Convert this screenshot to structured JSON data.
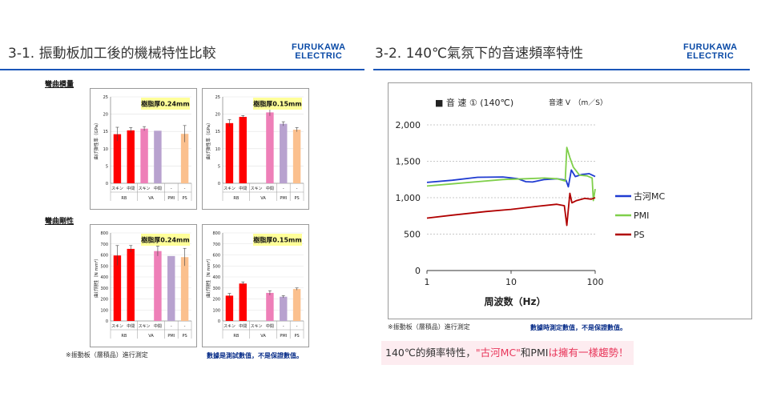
{
  "left_slide": {
    "title": "3-1. 振動板加工後的機械特性比較",
    "logo": {
      "line1": "FURUKAWA",
      "line2": "ELECTRIC"
    },
    "section_modulus": "彎曲模量",
    "section_rigidity": "彎曲剛性",
    "note": "※振動板（層積品）進行測定",
    "note_blue": "數據是測試數值，不是保證數值。"
  },
  "right_slide": {
    "title": "3-2. 140℃氣氛下的音速頻率特性",
    "logo": {
      "line1": "FURUKAWA",
      "line2": "ELECTRIC"
    },
    "note": "※振動板（層積品）進行測定",
    "note_blue": "數據時測定數值，不是保證數值。",
    "callout_plain1": "140℃的頻率特性，",
    "callout_hl1": "\"古河MC\"",
    "callout_plain2": "和PMI",
    "callout_plain3": "は",
    "callout_hl2": "擁有一樣趨勢！"
  },
  "colors": {
    "red": "#ff0000",
    "pink": "#ee7fb8",
    "lavender": "#b8a2cf",
    "peach": "#fbc08e",
    "blue_line": "#1f3bd1",
    "green_line": "#7fcf4a",
    "darkred_line": "#b00000",
    "title_rule": "#1a56b8",
    "label_bg": "#ffff99"
  },
  "chart_data": [
    {
      "type": "bar",
      "ylabel": "曲げ弾性率（GPa）",
      "label": "樹脂厚0.24mm",
      "ylim": [
        0,
        25
      ],
      "yticks": [
        "0",
        "5",
        "10",
        "15",
        "20",
        "25"
      ],
      "categories": [
        "スキン",
        "中間",
        "スキン",
        "中間",
        "-",
        "-"
      ],
      "groups": [
        "RB",
        "VA",
        "PMI",
        "PS"
      ],
      "values": [
        14.2,
        15.3,
        15.8,
        15.2,
        null,
        14.3
      ],
      "errors": [
        2.0,
        0.8,
        0.6,
        null,
        null,
        2.4
      ],
      "colors": [
        "red",
        "red",
        "pink",
        "lavender",
        "lavender",
        "peach"
      ]
    },
    {
      "type": "bar",
      "ylabel": "曲げ弾性率（GPa）",
      "label": "樹脂厚0.15mm",
      "ylim": [
        0,
        25
      ],
      "yticks": [
        "0",
        "5",
        "10",
        "15",
        "20",
        "25"
      ],
      "categories": [
        "スキン",
        "中間",
        "スキン",
        "中間",
        "-",
        "-"
      ],
      "groups": [
        "RB",
        "VA",
        "PMI",
        "PS"
      ],
      "values": [
        17.4,
        19.2,
        null,
        20.5,
        17.2,
        15.5
      ],
      "errors": [
        1.0,
        0.4,
        null,
        1.0,
        0.6,
        0.6
      ],
      "colors": [
        "red",
        "red",
        "pink",
        "pink",
        "lavender",
        "peach"
      ]
    },
    {
      "type": "bar",
      "ylabel": "曲げ剛性（N mm²）",
      "label": "樹脂厚0.24mm",
      "ylim": [
        0,
        800
      ],
      "yticks": [
        "0",
        "100",
        "200",
        "300",
        "400",
        "500",
        "600",
        "700",
        "800"
      ],
      "categories": [
        "スキン",
        "中間",
        "スキン",
        "中間",
        "-",
        "-"
      ],
      "groups": [
        "RB",
        "VA",
        "PMI",
        "PS"
      ],
      "values": [
        595,
        655,
        null,
        635,
        590,
        580
      ],
      "errors": [
        90,
        30,
        null,
        45,
        null,
        80
      ],
      "colors": [
        "red",
        "red",
        "pink",
        "pink",
        "lavender",
        "peach"
      ]
    },
    {
      "type": "bar",
      "ylabel": "曲げ剛性（N mm²）",
      "label": "樹脂厚0.15mm",
      "ylim": [
        0,
        800
      ],
      "yticks": [
        "0",
        "100",
        "200",
        "300",
        "400",
        "500",
        "600",
        "700",
        "800"
      ],
      "categories": [
        "スキン",
        "中間",
        "スキン",
        "中間",
        "-",
        "-"
      ],
      "groups": [
        "RB",
        "VA",
        "PMI",
        "PS"
      ],
      "values": [
        230,
        340,
        null,
        255,
        220,
        290
      ],
      "errors": [
        20,
        15,
        null,
        20,
        10,
        10
      ],
      "colors": [
        "red",
        "red",
        "pink",
        "pink",
        "lavender",
        "peach"
      ]
    },
    {
      "type": "line",
      "title": "■ 音 速 ① (140℃)",
      "subtitle": "音速 V　（m／S）",
      "xlabel": "周波数（Hz）",
      "xscale": "log",
      "xlim": [
        1,
        100
      ],
      "xticks": [
        "1",
        "10",
        "100"
      ],
      "ylim": [
        0,
        2000
      ],
      "yticks": [
        "0",
        "500",
        "1,000",
        "1,500",
        "2,000"
      ],
      "legend": "right",
      "series": [
        {
          "name": "古河MC",
          "color": "blue_line",
          "points": [
            [
              1,
              1210
            ],
            [
              2,
              1240
            ],
            [
              4,
              1280
            ],
            [
              8,
              1285
            ],
            [
              12,
              1260
            ],
            [
              15,
              1220
            ],
            [
              18,
              1215
            ],
            [
              25,
              1250
            ],
            [
              35,
              1260
            ],
            [
              45,
              1240
            ],
            [
              48,
              1150
            ],
            [
              52,
              1380
            ],
            [
              58,
              1290
            ],
            [
              70,
              1320
            ],
            [
              85,
              1330
            ],
            [
              100,
              1290
            ]
          ]
        },
        {
          "name": "PMI",
          "color": "green_line",
          "points": [
            [
              1,
              1160
            ],
            [
              2,
              1190
            ],
            [
              4,
              1220
            ],
            [
              8,
              1250
            ],
            [
              15,
              1260
            ],
            [
              25,
              1270
            ],
            [
              35,
              1260
            ],
            [
              44,
              1230
            ],
            [
              46,
              1690
            ],
            [
              50,
              1550
            ],
            [
              55,
              1420
            ],
            [
              65,
              1310
            ],
            [
              80,
              1300
            ],
            [
              92,
              1270
            ],
            [
              95,
              960
            ],
            [
              100,
              1120
            ]
          ]
        },
        {
          "name": "PS",
          "color": "darkred_line",
          "points": [
            [
              1,
              720
            ],
            [
              2,
              760
            ],
            [
              5,
              810
            ],
            [
              10,
              840
            ],
            [
              20,
              880
            ],
            [
              35,
              910
            ],
            [
              43,
              890
            ],
            [
              46,
              620
            ],
            [
              50,
              1060
            ],
            [
              53,
              930
            ],
            [
              60,
              960
            ],
            [
              75,
              990
            ],
            [
              90,
              980
            ],
            [
              100,
              1000
            ]
          ]
        }
      ]
    }
  ]
}
